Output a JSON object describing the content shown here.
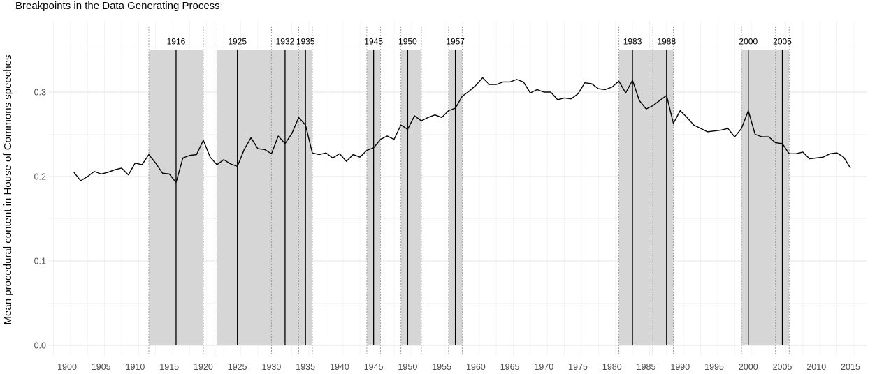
{
  "chart_data": {
    "type": "line",
    "title": "Breakpoints in the Data Generating Process",
    "xlabel": "",
    "ylabel": "Mean procedural content in House of Commons speeches",
    "xlim": [
      1898,
      2017
    ],
    "ylim": [
      0,
      0.35
    ],
    "x_ticks": [
      1900,
      1905,
      1910,
      1915,
      1920,
      1925,
      1930,
      1935,
      1940,
      1945,
      1950,
      1955,
      1960,
      1965,
      1970,
      1975,
      1980,
      1985,
      1990,
      1995,
      2000,
      2005,
      2010,
      2015
    ],
    "y_ticks": [
      0.0,
      0.1,
      0.2,
      0.3
    ],
    "y_tick_labels": [
      "0.0",
      "0.1",
      "0.2",
      "0.3"
    ],
    "grid": true,
    "series": [
      {
        "x": [
          1901,
          1902,
          1903,
          1904,
          1905,
          1906,
          1907,
          1908,
          1909,
          1910,
          1911,
          1912,
          1913,
          1914,
          1915,
          1916,
          1917,
          1918,
          1919,
          1920,
          1921,
          1922,
          1923,
          1924,
          1925,
          1926,
          1927,
          1928,
          1929,
          1930,
          1931,
          1932,
          1933,
          1934,
          1935,
          1936,
          1937,
          1938,
          1939,
          1940,
          1941,
          1942,
          1943,
          1944,
          1945,
          1946,
          1947,
          1948,
          1949,
          1950,
          1951,
          1952,
          1953,
          1954,
          1955,
          1956,
          1957,
          1958,
          1959,
          1960,
          1961,
          1962,
          1963,
          1964,
          1965,
          1966,
          1967,
          1968,
          1969,
          1970,
          1971,
          1972,
          1973,
          1974,
          1975,
          1976,
          1977,
          1978,
          1979,
          1980,
          1981,
          1982,
          1983,
          1984,
          1985,
          1986,
          1987,
          1988,
          1989,
          1990,
          1991,
          1992,
          1993,
          1994,
          1995,
          1996,
          1997,
          1998,
          1999,
          2000,
          2001,
          2002,
          2003,
          2004,
          2005,
          2006,
          2007,
          2008,
          2009,
          2010,
          2011,
          2012,
          2013,
          2014,
          2015
        ],
        "y": [
          0.205,
          0.195,
          0.2,
          0.206,
          0.203,
          0.205,
          0.208,
          0.21,
          0.202,
          0.216,
          0.214,
          0.226,
          0.216,
          0.204,
          0.203,
          0.193,
          0.222,
          0.225,
          0.226,
          0.243,
          0.223,
          0.214,
          0.22,
          0.215,
          0.212,
          0.232,
          0.246,
          0.233,
          0.232,
          0.227,
          0.248,
          0.239,
          0.251,
          0.27,
          0.261,
          0.228,
          0.226,
          0.228,
          0.222,
          0.227,
          0.218,
          0.226,
          0.223,
          0.231,
          0.234,
          0.244,
          0.248,
          0.244,
          0.261,
          0.256,
          0.272,
          0.266,
          0.27,
          0.273,
          0.27,
          0.278,
          0.281,
          0.295,
          0.301,
          0.308,
          0.317,
          0.309,
          0.309,
          0.312,
          0.312,
          0.315,
          0.312,
          0.299,
          0.303,
          0.3,
          0.3,
          0.291,
          0.293,
          0.292,
          0.298,
          0.311,
          0.31,
          0.304,
          0.303,
          0.306,
          0.313,
          0.299,
          0.314,
          0.29,
          0.28,
          0.284,
          0.29,
          0.296,
          0.263,
          0.278,
          0.27,
          0.261,
          0.257,
          0.253,
          0.254,
          0.255,
          0.257,
          0.247,
          0.257,
          0.278,
          0.25,
          0.247,
          0.247,
          0.24,
          0.239,
          0.227,
          0.227,
          0.229,
          0.221,
          0.222,
          0.223,
          0.227,
          0.228,
          0.223,
          0.21
        ]
      }
    ],
    "breakpoints": [
      1916,
      1925,
      1932,
      1935,
      1945,
      1950,
      1957,
      1983,
      1988,
      2000,
      2005
    ],
    "breakpoint_labels": [
      "1916",
      "1925",
      "1932",
      "1935",
      "1945",
      "1950",
      "1957",
      "1983",
      "1988",
      "2000",
      "2005"
    ],
    "confidence_intervals": [
      [
        1912,
        1920
      ],
      [
        1922,
        1930
      ],
      [
        1930,
        1934
      ],
      [
        1934,
        1936
      ],
      [
        1944,
        1946
      ],
      [
        1949,
        1952
      ],
      [
        1956,
        1958
      ],
      [
        1981,
        1986
      ],
      [
        1986,
        1989
      ],
      [
        1999,
        2004
      ],
      [
        2004,
        2006
      ]
    ]
  }
}
